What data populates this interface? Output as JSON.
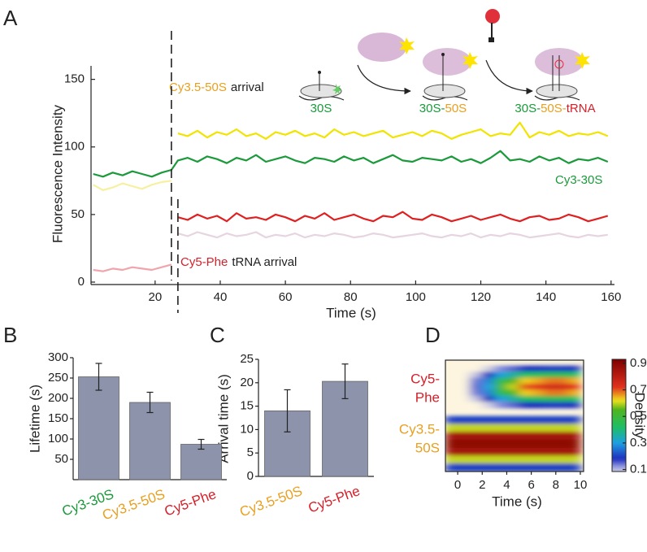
{
  "chart_data": [
    {
      "type": "line",
      "panel": "A",
      "ylabel": "Fluorescence Intensity",
      "xlabel": "Time (s)",
      "x": [
        1,
        4,
        7,
        10,
        13,
        16,
        19,
        22,
        25,
        27,
        30,
        33,
        36,
        39,
        42,
        45,
        48,
        51,
        54,
        57,
        60,
        63,
        66,
        69,
        72,
        75,
        78,
        81,
        84,
        87,
        90,
        93,
        96,
        99,
        102,
        105,
        108,
        111,
        114,
        117,
        120,
        123,
        126,
        129,
        132,
        135,
        138,
        141,
        144,
        147,
        150,
        153,
        156,
        159
      ],
      "series": [
        {
          "color": "#e6d4e0",
          "values": [
            null,
            null,
            null,
            null,
            null,
            null,
            null,
            null,
            null,
            36,
            34,
            37,
            35,
            33,
            36,
            34,
            35,
            37,
            33,
            35,
            34,
            36,
            33,
            35,
            34,
            36,
            35,
            33,
            34,
            36,
            35,
            33,
            34,
            35,
            36,
            34,
            33,
            35,
            34,
            36,
            33,
            35,
            34,
            36,
            35,
            33,
            34,
            35,
            36,
            34,
            33,
            35,
            34,
            35
          ]
        },
        {
          "color": "#e02020",
          "values": [
            null,
            null,
            null,
            null,
            null,
            null,
            null,
            null,
            null,
            48,
            46,
            50,
            47,
            49,
            45,
            51,
            47,
            48,
            46,
            50,
            48,
            45,
            49,
            47,
            51,
            46,
            48,
            50,
            47,
            45,
            49,
            48,
            52,
            47,
            46,
            50,
            48,
            45,
            47,
            49,
            46,
            48,
            50,
            47,
            45,
            48,
            49,
            46,
            47,
            50,
            48,
            45,
            47,
            49
          ]
        },
        {
          "color": "#f0a4ac",
          "values": [
            9,
            8,
            10,
            9,
            11,
            10,
            9,
            11,
            13,
            null,
            null,
            null,
            null,
            null,
            null,
            null,
            null,
            null,
            null,
            null,
            null,
            null,
            null,
            null,
            null,
            null,
            null,
            null,
            null,
            null,
            null,
            null,
            null,
            null,
            null,
            null,
            null,
            null,
            null,
            null,
            null,
            null,
            null,
            null,
            null,
            null,
            null,
            null,
            null,
            null,
            null,
            null,
            null,
            null
          ]
        },
        {
          "color": "#f6f0a0",
          "values": [
            72,
            68,
            70,
            73,
            71,
            69,
            72,
            74,
            75,
            null,
            null,
            null,
            null,
            null,
            null,
            null,
            null,
            null,
            null,
            null,
            null,
            null,
            null,
            null,
            null,
            null,
            null,
            null,
            null,
            null,
            null,
            null,
            null,
            null,
            null,
            null,
            null,
            null,
            null,
            null,
            null,
            null,
            null,
            null,
            null,
            null,
            null,
            null,
            null,
            null,
            null,
            null,
            null,
            null
          ]
        },
        {
          "color": "#f0e400",
          "values": [
            null,
            null,
            null,
            null,
            null,
            null,
            null,
            null,
            null,
            110,
            108,
            112,
            107,
            111,
            109,
            113,
            108,
            110,
            106,
            111,
            109,
            112,
            108,
            110,
            107,
            113,
            109,
            111,
            108,
            110,
            112,
            107,
            109,
            111,
            108,
            112,
            110,
            106,
            109,
            111,
            113,
            108,
            110,
            109,
            118,
            107,
            111,
            109,
            112,
            108,
            110,
            109,
            111,
            108
          ]
        },
        {
          "color": "#1a9a3a",
          "values": [
            80,
            78,
            81,
            79,
            82,
            80,
            78,
            81,
            83,
            90,
            92,
            89,
            93,
            91,
            88,
            92,
            90,
            94,
            89,
            91,
            93,
            90,
            88,
            92,
            91,
            89,
            93,
            90,
            92,
            88,
            91,
            94,
            90,
            89,
            92,
            91,
            90,
            93,
            89,
            91,
            88,
            92,
            97,
            90,
            91,
            89,
            93,
            90,
            92,
            88,
            91,
            90,
            92,
            89
          ]
        }
      ],
      "arrival_markers": [
        25,
        27
      ],
      "xlim": [
        0,
        161
      ],
      "xticks": [
        20,
        40,
        60,
        80,
        100,
        120,
        140,
        160
      ],
      "ylim": [
        0,
        160
      ],
      "yticks": [
        0,
        50,
        100,
        150
      ],
      "annotations": [
        {
          "parts": [
            "Cy3.5-50S",
            "arrival"
          ]
        },
        {
          "parts": [
            "Cy3-30S"
          ]
        },
        {
          "parts": [
            "Cy5-Phe",
            "tRNA arrival"
          ]
        }
      ],
      "diagram_labels": [
        [
          "30S"
        ],
        [
          "30S-",
          "50S"
        ],
        [
          "30S-",
          "50S-",
          "tRNA"
        ]
      ]
    },
    {
      "type": "bar",
      "panel": "B",
      "ylabel": "Lifetime (s)",
      "categories": [
        "Cy3-30S",
        "Cy3.5-50S",
        "Cy5-Phe"
      ],
      "label_colors": [
        "#1a9a3a",
        "#e8a020",
        "#d8202a"
      ],
      "values": [
        253,
        190,
        87
      ],
      "errors": [
        33,
        25,
        12
      ],
      "color": "#8c93aa",
      "ylim": [
        0,
        300
      ],
      "yticks": [
        50,
        100,
        150,
        200,
        250,
        300
      ]
    },
    {
      "type": "bar",
      "panel": "C",
      "ylabel": "Arrival time (s)",
      "categories": [
        "Cy3.5-50S",
        "Cy5-Phe"
      ],
      "label_colors": [
        "#e8a020",
        "#d8202a"
      ],
      "values": [
        14,
        20.3
      ],
      "errors": [
        4.5,
        3.7
      ],
      "color": "#8c93aa",
      "ylim": [
        0,
        25
      ],
      "yticks": [
        0,
        5,
        10,
        15,
        20,
        25
      ]
    },
    {
      "type": "heatmap",
      "panel": "D",
      "xlabel": "Time (s)",
      "x_edges": [
        -1,
        0,
        1,
        2,
        3,
        4,
        5,
        6,
        7,
        8,
        9,
        10
      ],
      "xlim": [
        -1,
        10.3
      ],
      "xticks": [
        0,
        2,
        4,
        6,
        8,
        10
      ],
      "bands": [
        {
          "label_lines": [
            "Cy5-",
            "Phe"
          ],
          "label_color": "#d8202a",
          "z": [
            [
              0.03,
              0.03,
              0.04,
              0.08,
              0.13,
              0.15,
              0.18,
              0.18,
              0.19,
              0.19,
              0.18
            ],
            [
              0.03,
              0.03,
              0.09,
              0.18,
              0.3,
              0.36,
              0.42,
              0.43,
              0.45,
              0.45,
              0.43
            ],
            [
              0.03,
              0.05,
              0.14,
              0.27,
              0.45,
              0.54,
              0.63,
              0.65,
              0.68,
              0.68,
              0.65
            ],
            [
              0.03,
              0.05,
              0.15,
              0.3,
              0.5,
              0.6,
              0.7,
              0.72,
              0.75,
              0.75,
              0.72
            ],
            [
              0.03,
              0.05,
              0.14,
              0.27,
              0.45,
              0.54,
              0.63,
              0.65,
              0.68,
              0.68,
              0.65
            ],
            [
              0.03,
              0.03,
              0.09,
              0.18,
              0.3,
              0.36,
              0.42,
              0.43,
              0.45,
              0.45,
              0.43
            ],
            [
              0.03,
              0.03,
              0.04,
              0.08,
              0.13,
              0.15,
              0.18,
              0.18,
              0.19,
              0.19,
              0.18
            ]
          ]
        },
        {
          "label_lines": [
            "Cy3.5-",
            "50S"
          ],
          "label_color": "#e8a020",
          "z": [
            [
              0.2,
              0.2,
              0.2,
              0.2,
              0.2,
              0.2,
              0.2,
              0.2,
              0.2,
              0.2,
              0.2
            ],
            [
              0.6,
              0.6,
              0.6,
              0.6,
              0.6,
              0.6,
              0.6,
              0.6,
              0.6,
              0.6,
              0.6
            ],
            [
              0.85,
              0.85,
              0.85,
              0.85,
              0.85,
              0.85,
              0.85,
              0.85,
              0.85,
              0.85,
              0.85
            ],
            [
              0.9,
              0.9,
              0.9,
              0.9,
              0.9,
              0.9,
              0.9,
              0.9,
              0.9,
              0.9,
              0.9
            ],
            [
              0.85,
              0.85,
              0.85,
              0.85,
              0.85,
              0.85,
              0.85,
              0.85,
              0.85,
              0.85,
              0.85
            ],
            [
              0.6,
              0.6,
              0.6,
              0.6,
              0.6,
              0.6,
              0.6,
              0.6,
              0.6,
              0.6,
              0.6
            ],
            [
              0.2,
              0.2,
              0.2,
              0.2,
              0.2,
              0.2,
              0.2,
              0.2,
              0.2,
              0.2,
              0.2
            ]
          ]
        }
      ],
      "colorbar": {
        "label": "Density",
        "lim": [
          0.085,
          0.93
        ],
        "ticks": [
          0.1,
          0.3,
          0.5,
          0.7,
          0.9
        ]
      }
    }
  ]
}
